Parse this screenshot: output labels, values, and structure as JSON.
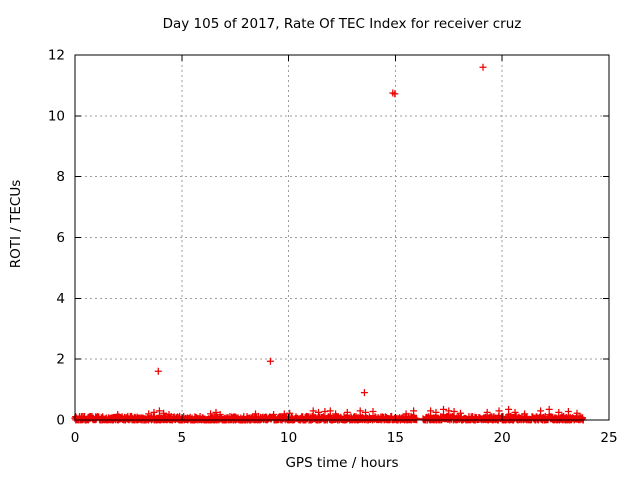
{
  "title": "Day 105 of 2017, Rate Of TEC Index for receiver cruz",
  "chart_data": {
    "type": "scatter",
    "title": "Day 105 of 2017, Rate Of TEC Index for receiver cruz",
    "xlabel": "GPS time / hours",
    "ylabel": "ROTI / TECUs",
    "xlim": [
      0,
      25
    ],
    "ylim": [
      0,
      12
    ],
    "xticks": [
      0,
      5,
      10,
      15,
      20,
      25
    ],
    "yticks": [
      0,
      2,
      4,
      6,
      8,
      10,
      12
    ],
    "grid": true,
    "legend": "none",
    "marker": "plus",
    "marker_color": "#ee0000",
    "grid_color": "#9e9e9e",
    "axis_color": "#000000",
    "background_color": "#ffffff",
    "outlier_points": [
      {
        "x": 3.9,
        "y": 1.6
      },
      {
        "x": 9.15,
        "y": 1.93
      },
      {
        "x": 13.55,
        "y": 0.9
      },
      {
        "x": 14.88,
        "y": 10.75
      },
      {
        "x": 14.97,
        "y": 10.72
      },
      {
        "x": 19.1,
        "y": 11.6
      }
    ],
    "baseline_band": {
      "note": "dense near-zero ROTI values for all epochs of the day",
      "segments": [
        [
          0.0,
          16.0
        ],
        [
          16.3,
          23.82
        ]
      ],
      "y_range": [
        0,
        0.12
      ],
      "spikes": [
        {
          "x": 2.0,
          "y": 0.18
        },
        {
          "x": 3.45,
          "y": 0.2
        },
        {
          "x": 3.7,
          "y": 0.25
        },
        {
          "x": 3.95,
          "y": 0.3
        },
        {
          "x": 4.15,
          "y": 0.22
        },
        {
          "x": 4.4,
          "y": 0.18
        },
        {
          "x": 6.35,
          "y": 0.2
        },
        {
          "x": 6.6,
          "y": 0.25
        },
        {
          "x": 6.8,
          "y": 0.18
        },
        {
          "x": 8.45,
          "y": 0.2
        },
        {
          "x": 9.3,
          "y": 0.18
        },
        {
          "x": 9.8,
          "y": 0.2
        },
        {
          "x": 10.05,
          "y": 0.22
        },
        {
          "x": 11.15,
          "y": 0.3
        },
        {
          "x": 11.4,
          "y": 0.25
        },
        {
          "x": 11.7,
          "y": 0.28
        },
        {
          "x": 11.95,
          "y": 0.3
        },
        {
          "x": 12.2,
          "y": 0.2
        },
        {
          "x": 12.75,
          "y": 0.25
        },
        {
          "x": 13.35,
          "y": 0.3
        },
        {
          "x": 13.6,
          "y": 0.25
        },
        {
          "x": 13.95,
          "y": 0.28
        },
        {
          "x": 15.5,
          "y": 0.2
        },
        {
          "x": 15.85,
          "y": 0.3
        },
        {
          "x": 16.65,
          "y": 0.3
        },
        {
          "x": 16.9,
          "y": 0.25
        },
        {
          "x": 17.25,
          "y": 0.35
        },
        {
          "x": 17.5,
          "y": 0.3
        },
        {
          "x": 17.75,
          "y": 0.28
        },
        {
          "x": 18.05,
          "y": 0.22
        },
        {
          "x": 19.3,
          "y": 0.25
        },
        {
          "x": 19.85,
          "y": 0.3
        },
        {
          "x": 20.3,
          "y": 0.35
        },
        {
          "x": 20.6,
          "y": 0.25
        },
        {
          "x": 21.05,
          "y": 0.2
        },
        {
          "x": 21.8,
          "y": 0.3
        },
        {
          "x": 22.2,
          "y": 0.35
        },
        {
          "x": 22.65,
          "y": 0.25
        },
        {
          "x": 23.1,
          "y": 0.28
        },
        {
          "x": 23.5,
          "y": 0.22
        }
      ]
    }
  },
  "colors": {
    "background": "#ffffff",
    "axis": "#000000",
    "data_red": "#ee0000",
    "grid_gray": "#9e9e9e"
  }
}
